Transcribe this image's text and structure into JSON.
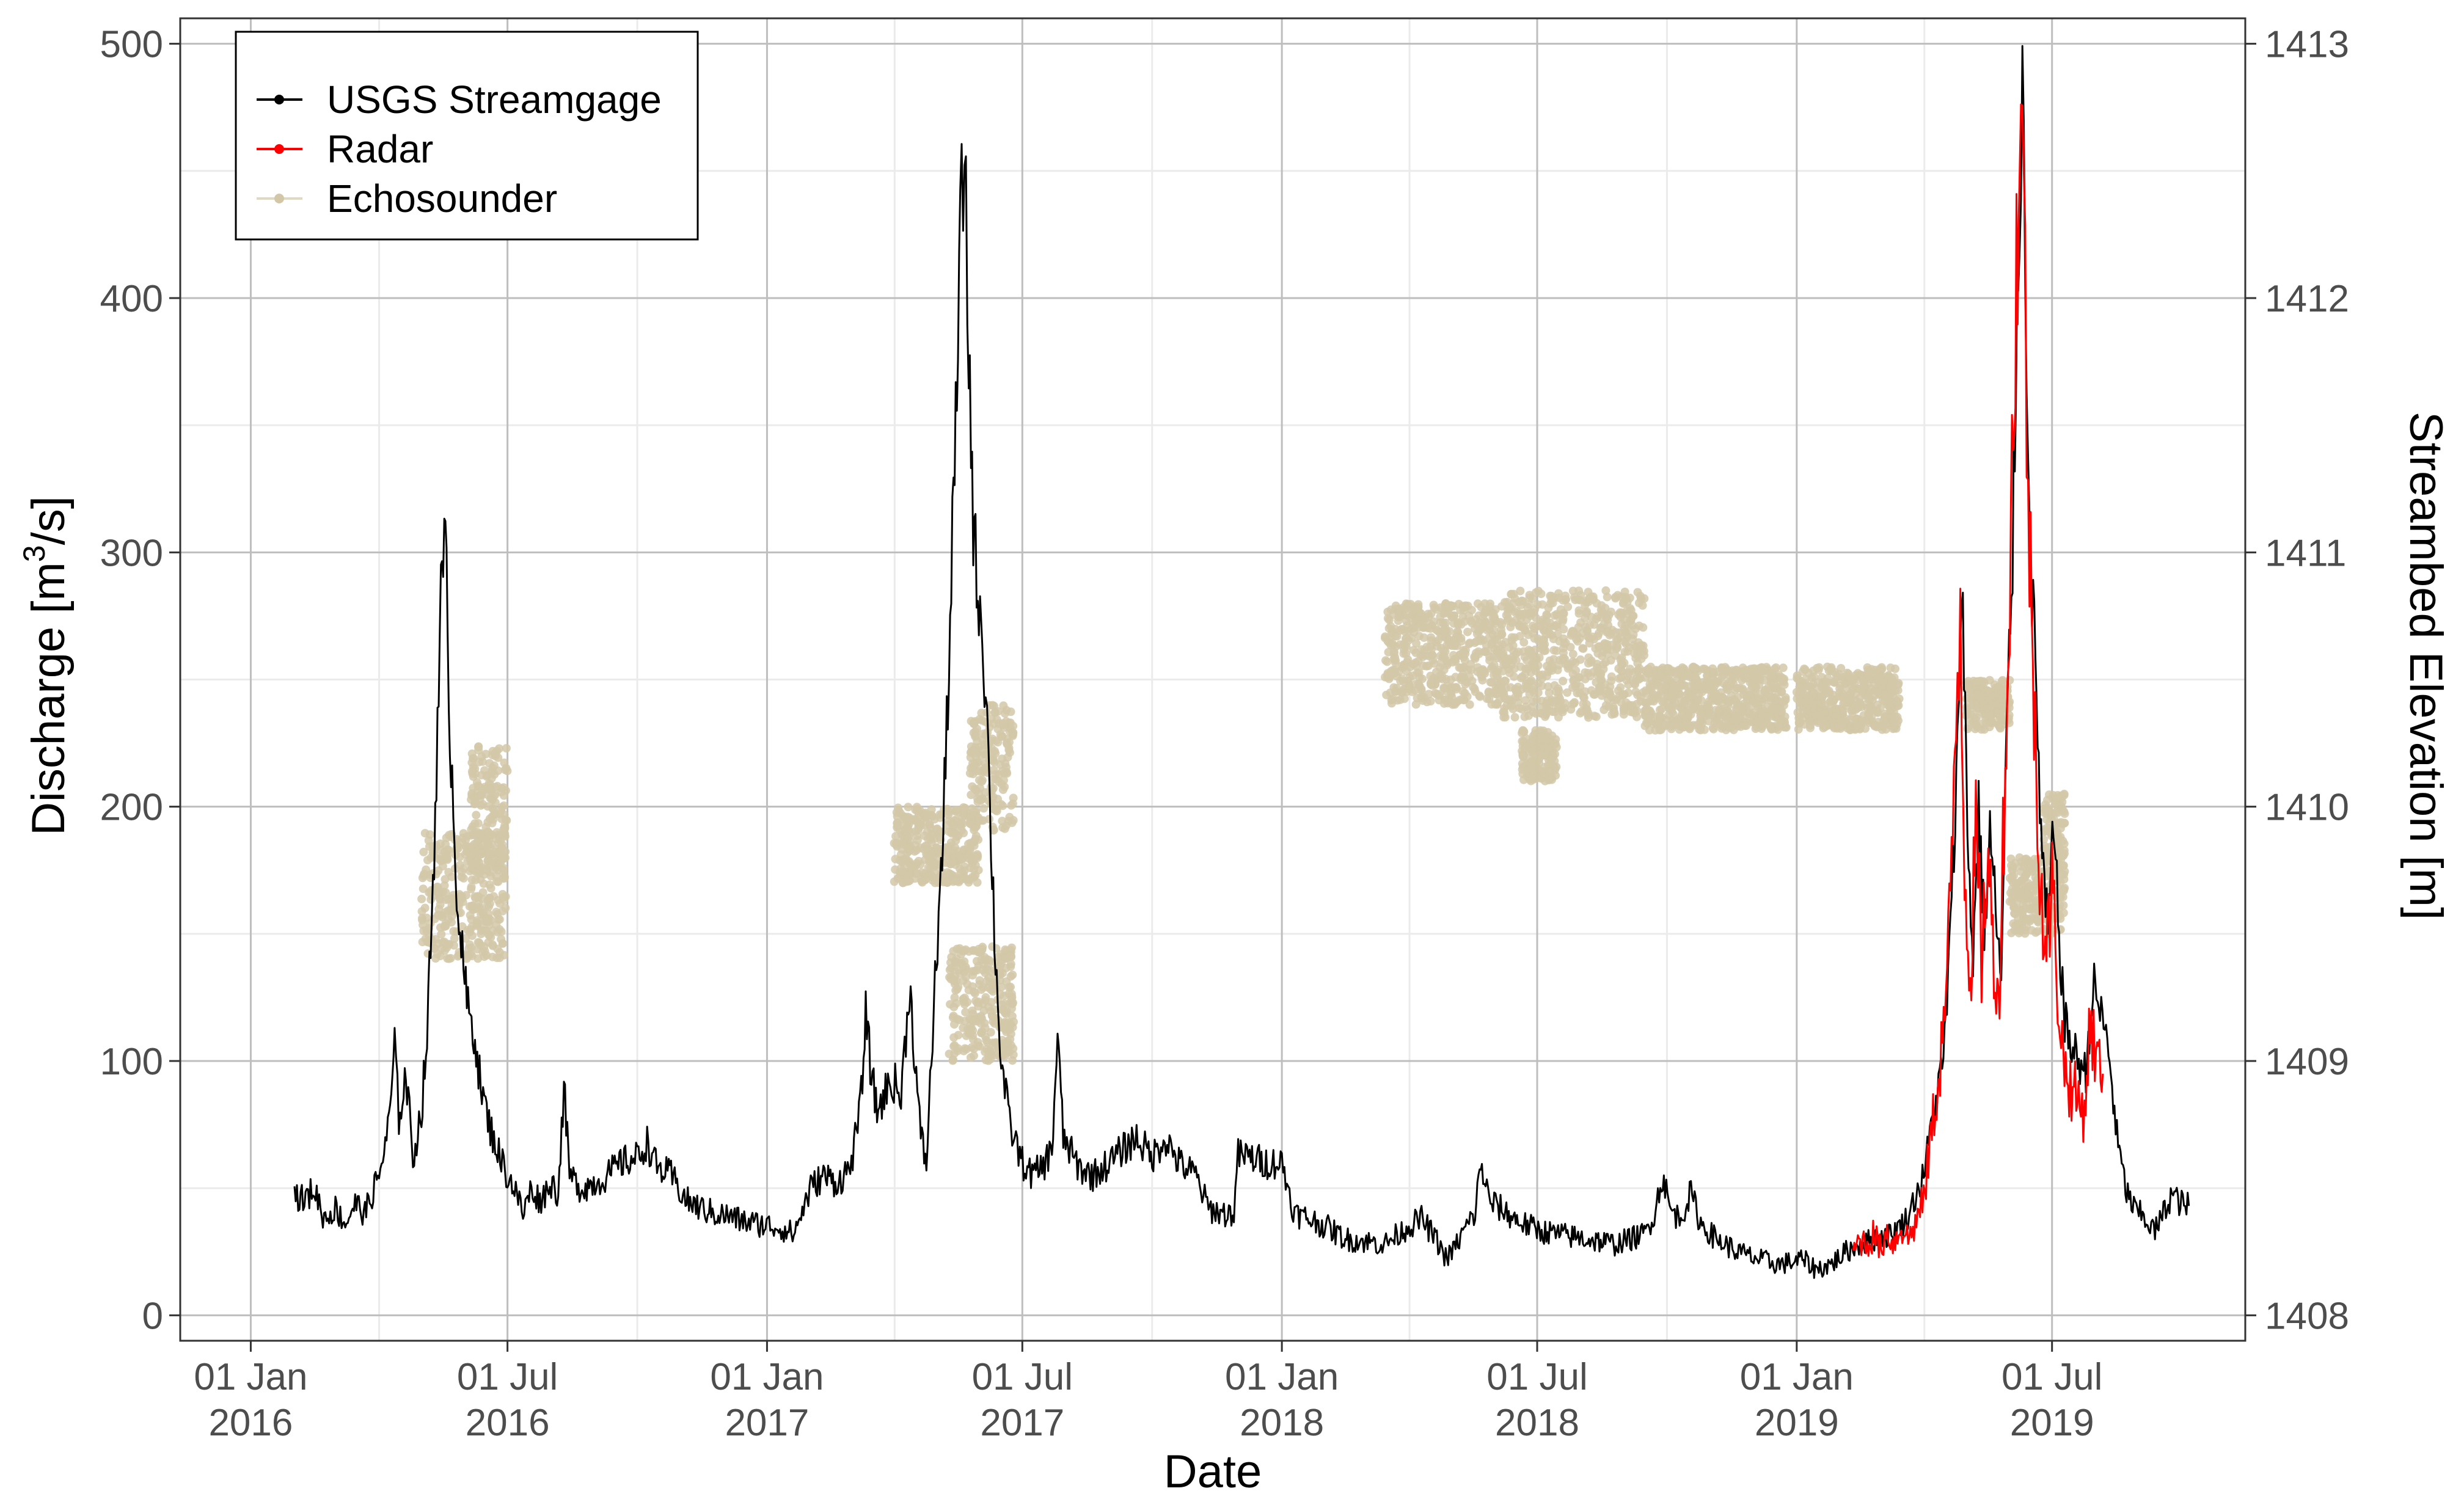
{
  "chart_data": {
    "type": "line",
    "xlabel": "Date",
    "ylabel": "Discharge [m³/s]",
    "ylabel_parts": {
      "pre": "Discharge [m",
      "sup": "3",
      "post": "/s]"
    },
    "y2label": "Streambed Elevation [m]",
    "xlim": [
      "2015-11-12",
      "2019-11-15"
    ],
    "ylim": [
      -10,
      510
    ],
    "y2lim": [
      1407.9,
      1413.1
    ],
    "x_ticks": [
      {
        "date": "2016-01-01",
        "label1": "01 Jan",
        "label2": "2016"
      },
      {
        "date": "2016-07-01",
        "label1": "01 Jul",
        "label2": "2016"
      },
      {
        "date": "2017-01-01",
        "label1": "01 Jan",
        "label2": "2017"
      },
      {
        "date": "2017-07-01",
        "label1": "01 Jul",
        "label2": "2017"
      },
      {
        "date": "2018-01-01",
        "label1": "01 Jan",
        "label2": "2018"
      },
      {
        "date": "2018-07-01",
        "label1": "01 Jul",
        "label2": "2018"
      },
      {
        "date": "2019-01-01",
        "label1": "01 Jan",
        "label2": "2019"
      },
      {
        "date": "2019-07-01",
        "label1": "01 Jul",
        "label2": "2019"
      }
    ],
    "y_ticks": [
      0,
      100,
      200,
      300,
      400,
      500
    ],
    "y2_ticks": [
      1408,
      1409,
      1410,
      1411,
      1412,
      1413
    ],
    "grid": true,
    "legend": "top-left",
    "series": [
      {
        "name": "USGS Streamgage",
        "color": "#000000",
        "kind": "line",
        "points": [
          [
            "2016-02-01",
            48
          ],
          [
            "2016-02-08",
            45
          ],
          [
            "2016-02-15",
            50
          ],
          [
            "2016-02-22",
            38
          ],
          [
            "2016-03-01",
            42
          ],
          [
            "2016-03-08",
            36
          ],
          [
            "2016-03-15",
            44
          ],
          [
            "2016-03-22",
            40
          ],
          [
            "2016-04-01",
            55
          ],
          [
            "2016-04-08",
            75
          ],
          [
            "2016-04-12",
            105
          ],
          [
            "2016-04-15",
            78
          ],
          [
            "2016-04-20",
            95
          ],
          [
            "2016-04-25",
            62
          ],
          [
            "2016-05-01",
            80
          ],
          [
            "2016-05-05",
            110
          ],
          [
            "2016-05-10",
            180
          ],
          [
            "2016-05-14",
            275
          ],
          [
            "2016-05-18",
            300
          ],
          [
            "2016-05-22",
            220
          ],
          [
            "2016-05-26",
            170
          ],
          [
            "2016-05-30",
            140
          ],
          [
            "2016-06-03",
            120
          ],
          [
            "2016-06-08",
            110
          ],
          [
            "2016-06-12",
            90
          ],
          [
            "2016-06-18",
            75
          ],
          [
            "2016-06-24",
            65
          ],
          [
            "2016-07-01",
            55
          ],
          [
            "2016-07-06",
            50
          ],
          [
            "2016-07-12",
            40
          ],
          [
            "2016-07-18",
            50
          ],
          [
            "2016-07-24",
            45
          ],
          [
            "2016-08-01",
            52
          ],
          [
            "2016-08-06",
            48
          ],
          [
            "2016-08-10",
            90
          ],
          [
            "2016-08-14",
            55
          ],
          [
            "2016-08-22",
            50
          ],
          [
            "2016-09-01",
            52
          ],
          [
            "2016-09-10",
            55
          ],
          [
            "2016-09-20",
            60
          ],
          [
            "2016-10-01",
            62
          ],
          [
            "2016-10-08",
            68
          ],
          [
            "2016-10-15",
            58
          ],
          [
            "2016-10-25",
            55
          ],
          [
            "2016-11-05",
            45
          ],
          [
            "2016-11-15",
            42
          ],
          [
            "2016-11-25",
            40
          ],
          [
            "2016-12-05",
            39
          ],
          [
            "2016-12-15",
            37
          ],
          [
            "2016-12-25",
            36
          ],
          [
            "2017-01-05",
            35
          ],
          [
            "2017-01-12",
            34
          ],
          [
            "2017-01-20",
            32
          ],
          [
            "2017-02-01",
            50
          ],
          [
            "2017-02-10",
            55
          ],
          [
            "2017-02-20",
            52
          ],
          [
            "2017-03-01",
            58
          ],
          [
            "2017-03-08",
            80
          ],
          [
            "2017-03-12",
            118
          ],
          [
            "2017-03-16",
            95
          ],
          [
            "2017-03-20",
            80
          ],
          [
            "2017-03-26",
            88
          ],
          [
            "2017-04-01",
            92
          ],
          [
            "2017-04-06",
            85
          ],
          [
            "2017-04-12",
            130
          ],
          [
            "2017-04-16",
            100
          ],
          [
            "2017-04-20",
            70
          ],
          [
            "2017-04-24",
            60
          ],
          [
            "2017-05-01",
            140
          ],
          [
            "2017-05-06",
            190
          ],
          [
            "2017-05-10",
            260
          ],
          [
            "2017-05-14",
            330
          ],
          [
            "2017-05-18",
            420
          ],
          [
            "2017-05-21",
            460
          ],
          [
            "2017-05-24",
            380
          ],
          [
            "2017-05-28",
            300
          ],
          [
            "2017-06-01",
            280
          ],
          [
            "2017-06-05",
            250
          ],
          [
            "2017-06-08",
            200
          ],
          [
            "2017-06-12",
            140
          ],
          [
            "2017-06-16",
            100
          ],
          [
            "2017-06-22",
            75
          ],
          [
            "2017-07-01",
            60
          ],
          [
            "2017-07-08",
            55
          ],
          [
            "2017-07-15",
            58
          ],
          [
            "2017-07-22",
            65
          ],
          [
            "2017-07-26",
            110
          ],
          [
            "2017-07-30",
            70
          ],
          [
            "2017-08-10",
            58
          ],
          [
            "2017-08-20",
            55
          ],
          [
            "2017-09-01",
            60
          ],
          [
            "2017-09-10",
            65
          ],
          [
            "2017-09-20",
            70
          ],
          [
            "2017-10-01",
            62
          ],
          [
            "2017-10-10",
            70
          ],
          [
            "2017-10-20",
            60
          ],
          [
            "2017-11-01",
            55
          ],
          [
            "2017-11-10",
            42
          ],
          [
            "2017-11-20",
            40
          ],
          [
            "2017-11-28",
            40
          ],
          [
            "2017-12-01",
            63
          ],
          [
            "2017-12-10",
            62
          ],
          [
            "2017-12-20",
            60
          ],
          [
            "2018-01-01",
            60
          ],
          [
            "2018-01-10",
            40
          ],
          [
            "2018-01-20",
            38
          ],
          [
            "2018-02-01",
            35
          ],
          [
            "2018-02-15",
            30
          ],
          [
            "2018-03-01",
            29
          ],
          [
            "2018-03-15",
            28
          ],
          [
            "2018-04-01",
            35
          ],
          [
            "2018-04-10",
            38
          ],
          [
            "2018-04-20",
            30
          ],
          [
            "2018-04-28",
            22
          ],
          [
            "2018-05-05",
            28
          ],
          [
            "2018-05-12",
            35
          ],
          [
            "2018-05-18",
            40
          ],
          [
            "2018-05-22",
            60
          ],
          [
            "2018-05-28",
            45
          ],
          [
            "2018-06-05",
            42
          ],
          [
            "2018-06-15",
            38
          ],
          [
            "2018-06-25",
            35
          ],
          [
            "2018-07-05",
            33
          ],
          [
            "2018-07-15",
            32
          ],
          [
            "2018-07-25",
            31
          ],
          [
            "2018-08-05",
            30
          ],
          [
            "2018-08-15",
            29
          ],
          [
            "2018-08-25",
            28
          ],
          [
            "2018-09-05",
            30
          ],
          [
            "2018-09-15",
            32
          ],
          [
            "2018-09-22",
            40
          ],
          [
            "2018-09-28",
            55
          ],
          [
            "2018-10-03",
            42
          ],
          [
            "2018-10-10",
            38
          ],
          [
            "2018-10-18",
            48
          ],
          [
            "2018-10-25",
            36
          ],
          [
            "2018-11-05",
            30
          ],
          [
            "2018-11-20",
            25
          ],
          [
            "2018-12-05",
            22
          ],
          [
            "2018-12-20",
            20
          ],
          [
            "2019-01-05",
            22
          ],
          [
            "2019-01-15",
            18
          ],
          [
            "2019-01-25",
            20
          ],
          [
            "2019-02-05",
            25
          ],
          [
            "2019-02-15",
            28
          ],
          [
            "2019-02-25",
            30
          ],
          [
            "2019-03-10",
            32
          ],
          [
            "2019-03-20",
            38
          ],
          [
            "2019-04-01",
            55
          ],
          [
            "2019-04-08",
            80
          ],
          [
            "2019-04-15",
            100
          ],
          [
            "2019-04-20",
            150
          ],
          [
            "2019-04-25",
            220
          ],
          [
            "2019-04-28",
            300
          ],
          [
            "2019-05-02",
            190
          ],
          [
            "2019-05-06",
            140
          ],
          [
            "2019-05-10",
            200
          ],
          [
            "2019-05-14",
            150
          ],
          [
            "2019-05-18",
            190
          ],
          [
            "2019-05-22",
            160
          ],
          [
            "2019-05-26",
            130
          ],
          [
            "2019-05-30",
            230
          ],
          [
            "2019-06-03",
            300
          ],
          [
            "2019-06-07",
            420
          ],
          [
            "2019-06-10",
            485
          ],
          [
            "2019-06-13",
            380
          ],
          [
            "2019-06-16",
            300
          ],
          [
            "2019-06-20",
            240
          ],
          [
            "2019-06-24",
            180
          ],
          [
            "2019-06-28",
            150
          ],
          [
            "2019-07-02",
            190
          ],
          [
            "2019-07-06",
            150
          ],
          [
            "2019-07-10",
            115
          ],
          [
            "2019-07-15",
            105
          ],
          [
            "2019-07-20",
            100
          ],
          [
            "2019-07-25",
            95
          ],
          [
            "2019-07-30",
            130
          ],
          [
            "2019-08-04",
            120
          ],
          [
            "2019-08-10",
            105
          ],
          [
            "2019-08-16",
            70
          ],
          [
            "2019-08-22",
            50
          ],
          [
            "2019-08-28",
            42
          ],
          [
            "2019-09-05",
            38
          ],
          [
            "2019-09-12",
            33
          ],
          [
            "2019-09-18",
            40
          ],
          [
            "2019-09-24",
            48
          ],
          [
            "2019-09-30",
            44
          ],
          [
            "2019-10-06",
            43
          ]
        ]
      },
      {
        "name": "Radar",
        "color": "#ff0000",
        "kind": "line",
        "points": [
          [
            "2019-02-10",
            25
          ],
          [
            "2019-02-15",
            30
          ],
          [
            "2019-02-20",
            28
          ],
          [
            "2019-02-25",
            32
          ],
          [
            "2019-03-01",
            26
          ],
          [
            "2019-03-06",
            33
          ],
          [
            "2019-03-11",
            28
          ],
          [
            "2019-03-16",
            35
          ],
          [
            "2019-03-21",
            30
          ],
          [
            "2019-03-26",
            36
          ],
          [
            "2019-04-01",
            45
          ],
          [
            "2019-04-06",
            70
          ],
          [
            "2019-04-11",
            90
          ],
          [
            "2019-04-16",
            120
          ],
          [
            "2019-04-20",
            160
          ],
          [
            "2019-04-24",
            240
          ],
          [
            "2019-04-27",
            280
          ],
          [
            "2019-04-30",
            180
          ],
          [
            "2019-05-04",
            130
          ],
          [
            "2019-05-08",
            190
          ],
          [
            "2019-05-12",
            140
          ],
          [
            "2019-05-16",
            180
          ],
          [
            "2019-05-20",
            150
          ],
          [
            "2019-05-24",
            120
          ],
          [
            "2019-05-28",
            200
          ],
          [
            "2019-06-01",
            280
          ],
          [
            "2019-06-05",
            400
          ],
          [
            "2019-06-09",
            470
          ],
          [
            "2019-06-12",
            400
          ],
          [
            "2019-06-15",
            300
          ],
          [
            "2019-06-19",
            230
          ],
          [
            "2019-06-23",
            170
          ],
          [
            "2019-06-27",
            140
          ],
          [
            "2019-07-01",
            170
          ],
          [
            "2019-07-05",
            130
          ],
          [
            "2019-07-09",
            100
          ],
          [
            "2019-07-14",
            90
          ],
          [
            "2019-07-19",
            85
          ],
          [
            "2019-07-24",
            80
          ],
          [
            "2019-07-28",
            115
          ],
          [
            "2019-08-02",
            100
          ],
          [
            "2019-08-06",
            95
          ]
        ]
      },
      {
        "name": "Echosounder",
        "color": "#d2c8a8",
        "kind": "points",
        "clusters": [
          {
            "start": "2016-05-01",
            "end": "2016-06-30",
            "low": 1409.4,
            "high": 1409.9
          },
          {
            "start": "2016-06-05",
            "end": "2016-07-01",
            "low": 1409.75,
            "high": 1410.25
          },
          {
            "start": "2017-04-01",
            "end": "2017-05-31",
            "low": 1409.7,
            "high": 1410.0
          },
          {
            "start": "2017-05-25",
            "end": "2017-06-25",
            "low": 1409.9,
            "high": 1410.4
          },
          {
            "start": "2017-05-10",
            "end": "2017-06-25",
            "low": 1409.0,
            "high": 1409.45
          },
          {
            "start": "2018-03-15",
            "end": "2018-06-05",
            "low": 1410.4,
            "high": 1410.8
          },
          {
            "start": "2018-06-05",
            "end": "2018-09-15",
            "low": 1410.35,
            "high": 1410.85
          },
          {
            "start": "2018-06-20",
            "end": "2018-07-15",
            "low": 1410.1,
            "high": 1410.3
          },
          {
            "start": "2018-09-15",
            "end": "2018-12-25",
            "low": 1410.3,
            "high": 1410.55
          },
          {
            "start": "2019-01-01",
            "end": "2019-03-15",
            "low": 1410.3,
            "high": 1410.55
          },
          {
            "start": "2019-05-01",
            "end": "2019-06-01",
            "low": 1410.3,
            "high": 1410.5
          },
          {
            "start": "2019-06-01",
            "end": "2019-07-10",
            "low": 1409.5,
            "high": 1409.8
          },
          {
            "start": "2019-06-25",
            "end": "2019-07-10",
            "low": 1409.8,
            "high": 1410.05
          }
        ]
      }
    ]
  }
}
